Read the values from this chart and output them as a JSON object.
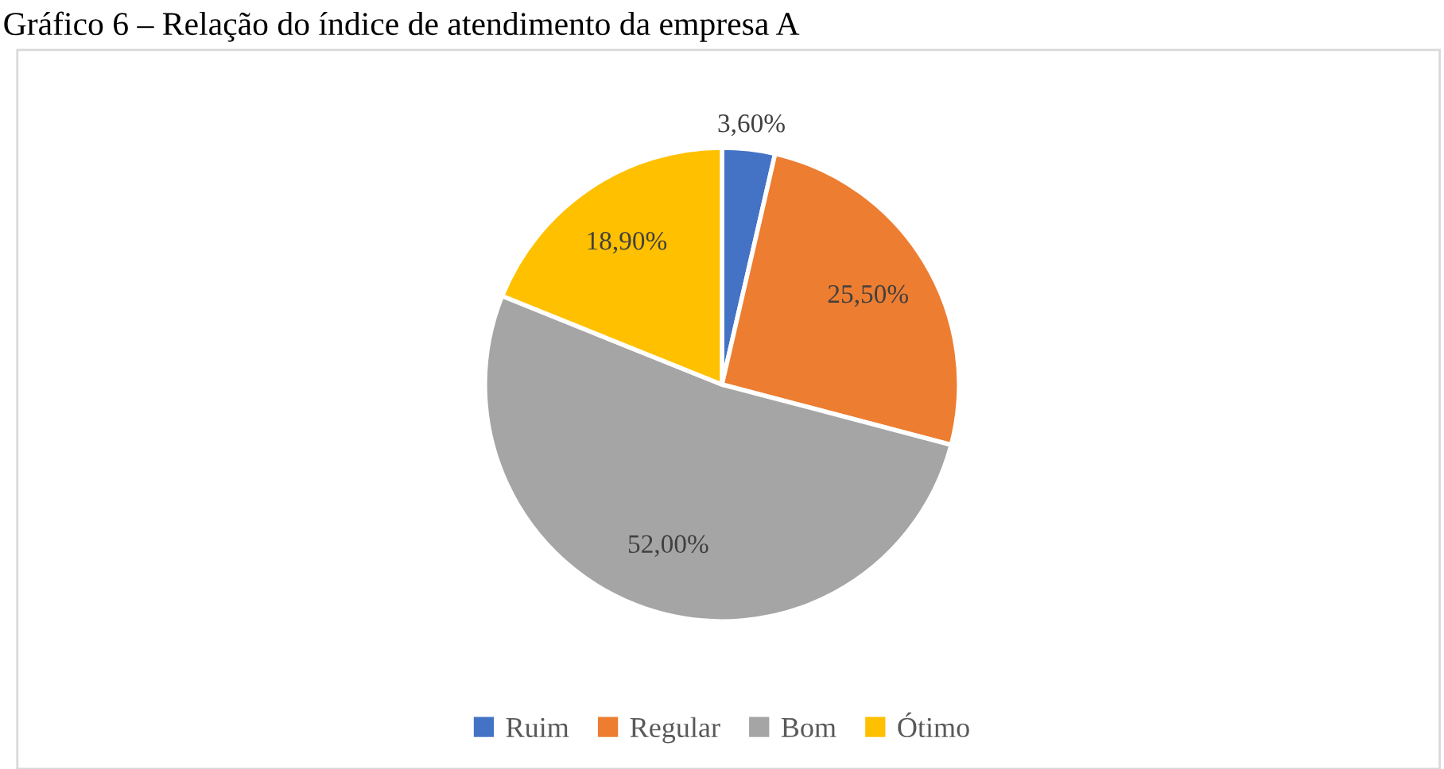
{
  "chart_data": {
    "type": "pie",
    "title": "Gráfico 6 – Relação do índice de atendimento da empresa A",
    "categories": [
      "Ruim",
      "Regular",
      "Bom",
      "Ótimo"
    ],
    "values": [
      3.6,
      25.5,
      52.0,
      18.9
    ],
    "colors": [
      "#4472c4",
      "#ed7d31",
      "#a5a5a5",
      "#ffc000"
    ],
    "value_labels": [
      "3,60%",
      "25,50%",
      "52,00%",
      "18,90%"
    ],
    "legend": "bottom"
  }
}
